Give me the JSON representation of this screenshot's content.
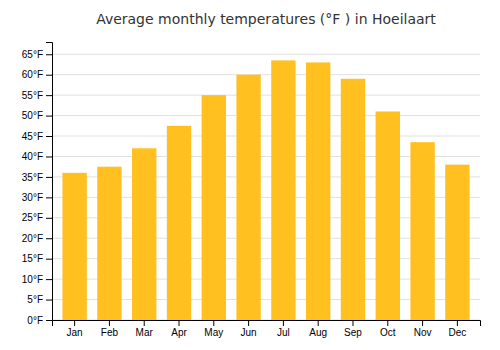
{
  "chart_data": {
    "type": "bar",
    "title": "Average monthly temperatures (°F ) in Hoeilaart",
    "categories": [
      "Jan",
      "Feb",
      "Mar",
      "Apr",
      "May",
      "Jun",
      "Jul",
      "Aug",
      "Sep",
      "Oct",
      "Nov",
      "Dec"
    ],
    "values": [
      36,
      37.5,
      42,
      47.5,
      55,
      60,
      63.5,
      63,
      59,
      51,
      43.5,
      38
    ],
    "color": "#FFC020",
    "ylim": [
      0,
      68
    ],
    "yticks": [
      {
        "value": 0,
        "label": "0°F"
      },
      {
        "value": 5,
        "label": "5°F"
      },
      {
        "value": 10,
        "label": "10°F"
      },
      {
        "value": 15,
        "label": "15°F"
      },
      {
        "value": 20,
        "label": "20°F"
      },
      {
        "value": 25,
        "label": "25°F"
      },
      {
        "value": 30,
        "label": "30°F"
      },
      {
        "value": 35,
        "label": "35°F"
      },
      {
        "value": 40,
        "label": "40°F"
      },
      {
        "value": 45,
        "label": "45°F"
      },
      {
        "value": 50,
        "label": "50°F"
      },
      {
        "value": 55,
        "label": "55°F"
      },
      {
        "value": 60,
        "label": "60°F"
      },
      {
        "value": 65,
        "label": "65°F"
      }
    ],
    "grid": true
  }
}
